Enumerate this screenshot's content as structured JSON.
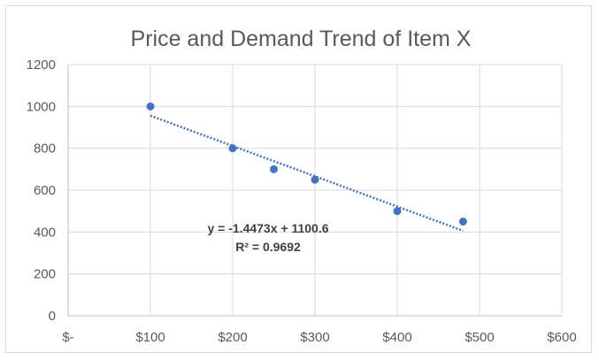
{
  "chart_data": {
    "type": "scatter",
    "title": "Price and Demand Trend of Item X",
    "xlabel": "",
    "ylabel": "",
    "xlim": [
      0,
      600
    ],
    "ylim": [
      0,
      1200
    ],
    "x_ticks": [
      0,
      100,
      200,
      300,
      400,
      500,
      600
    ],
    "x_tick_labels": [
      "$-",
      "$100",
      "$200",
      "$300",
      "$400",
      "$500",
      "$600"
    ],
    "y_ticks": [
      0,
      200,
      400,
      600,
      800,
      1000,
      1200
    ],
    "y_tick_labels": [
      "0",
      "200",
      "400",
      "600",
      "800",
      "1000",
      "1200"
    ],
    "grid": true,
    "legend": "none",
    "series": [
      {
        "x": [
          100,
          200,
          250,
          300,
          400,
          480
        ],
        "y": [
          1000,
          800,
          700,
          650,
          500,
          450
        ],
        "color": "#4472c4"
      }
    ],
    "trendline": {
      "type": "linear",
      "slope": -1.4473,
      "intercept": 1100.6,
      "x_range": [
        100,
        480
      ],
      "style": "dotted",
      "color": "#4472c4",
      "equation_label": "y = -1.4473x + 1100.6",
      "r2_label": "R² = 0.9692"
    }
  }
}
